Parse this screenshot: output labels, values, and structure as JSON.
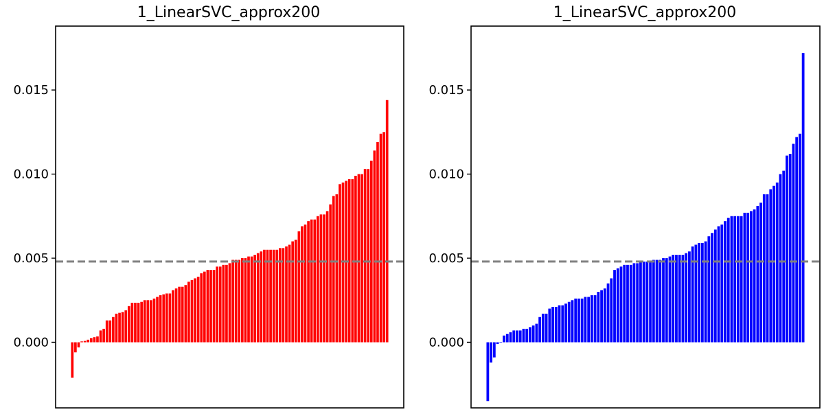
{
  "colors": {
    "left_series": "#ff0000",
    "right_series": "#0000ff",
    "reference_line": "#808080",
    "axes": "#000000"
  },
  "chart_data": [
    {
      "type": "bar",
      "title": "1_LinearSVC_approx200",
      "xlabel": "",
      "ylabel": "",
      "ylim": [
        -0.0039,
        0.0188
      ],
      "yticks": [
        "0.000",
        "0.005",
        "0.010",
        "0.015"
      ],
      "ytick_values": [
        0.0,
        0.005,
        0.01,
        0.015
      ],
      "reference_line": {
        "value": 0.0048,
        "style": "dashed"
      },
      "grid": false,
      "legend": "none",
      "values": [
        -0.0021,
        -0.0006,
        -0.0003,
        5e-05,
        8e-05,
        0.00015,
        0.00025,
        0.0003,
        0.00035,
        0.0007,
        0.0008,
        0.0013,
        0.0013,
        0.0015,
        0.0017,
        0.00175,
        0.0018,
        0.0019,
        0.00215,
        0.00235,
        0.00235,
        0.00235,
        0.0024,
        0.0025,
        0.0025,
        0.0025,
        0.0026,
        0.0027,
        0.0028,
        0.00285,
        0.0029,
        0.0029,
        0.0031,
        0.0032,
        0.0033,
        0.0033,
        0.0034,
        0.0036,
        0.0037,
        0.0038,
        0.0039,
        0.0041,
        0.0042,
        0.0043,
        0.0043,
        0.0043,
        0.0045,
        0.0045,
        0.0046,
        0.0046,
        0.0047,
        0.0049,
        0.0049,
        0.0049,
        0.005,
        0.005,
        0.0051,
        0.0051,
        0.0052,
        0.0053,
        0.0054,
        0.0055,
        0.0055,
        0.0055,
        0.0055,
        0.0055,
        0.0056,
        0.0056,
        0.0057,
        0.0058,
        0.006,
        0.0061,
        0.0066,
        0.0069,
        0.007,
        0.0072,
        0.0073,
        0.0073,
        0.0075,
        0.0076,
        0.0076,
        0.0078,
        0.0082,
        0.0087,
        0.0088,
        0.0094,
        0.0095,
        0.0096,
        0.0097,
        0.0097,
        0.0099,
        0.01,
        0.01,
        0.0103,
        0.0103,
        0.0108,
        0.0114,
        0.0119,
        0.0124,
        0.0125,
        0.0144
      ]
    },
    {
      "type": "bar",
      "title": "1_LinearSVC_approx200",
      "xlabel": "",
      "ylabel": "",
      "ylim": [
        -0.0039,
        0.0188
      ],
      "yticks": [
        "0.000",
        "0.005",
        "0.010",
        "0.015"
      ],
      "ytick_values": [
        0.0,
        0.005,
        0.01,
        0.015
      ],
      "reference_line": {
        "value": 0.0048,
        "style": "dashed"
      },
      "grid": false,
      "legend": "none",
      "values": [
        -0.0035,
        -0.0012,
        -0.0009,
        -0.0001,
        2e-05,
        0.0004,
        0.0005,
        0.0006,
        0.0007,
        0.0007,
        0.0007,
        0.0008,
        0.0008,
        0.0009,
        0.001,
        0.0011,
        0.0015,
        0.0017,
        0.0017,
        0.002,
        0.0021,
        0.0021,
        0.0022,
        0.0022,
        0.0023,
        0.0024,
        0.0025,
        0.0026,
        0.0026,
        0.0026,
        0.0027,
        0.0027,
        0.0028,
        0.0028,
        0.003,
        0.0031,
        0.0032,
        0.0035,
        0.0038,
        0.0043,
        0.0044,
        0.0045,
        0.0046,
        0.0046,
        0.0046,
        0.0047,
        0.0047,
        0.0048,
        0.0048,
        0.0048,
        0.0048,
        0.0049,
        0.0049,
        0.0049,
        0.005,
        0.005,
        0.0051,
        0.0052,
        0.0052,
        0.0052,
        0.0052,
        0.0053,
        0.0054,
        0.0057,
        0.0058,
        0.0059,
        0.0059,
        0.006,
        0.0063,
        0.0065,
        0.0067,
        0.0069,
        0.007,
        0.0072,
        0.0074,
        0.0075,
        0.0075,
        0.0075,
        0.0075,
        0.0077,
        0.0077,
        0.0078,
        0.0079,
        0.0081,
        0.0083,
        0.0088,
        0.0088,
        0.0091,
        0.0093,
        0.0095,
        0.01,
        0.0102,
        0.0111,
        0.0112,
        0.0118,
        0.0122,
        0.0124,
        0.0172
      ]
    }
  ]
}
